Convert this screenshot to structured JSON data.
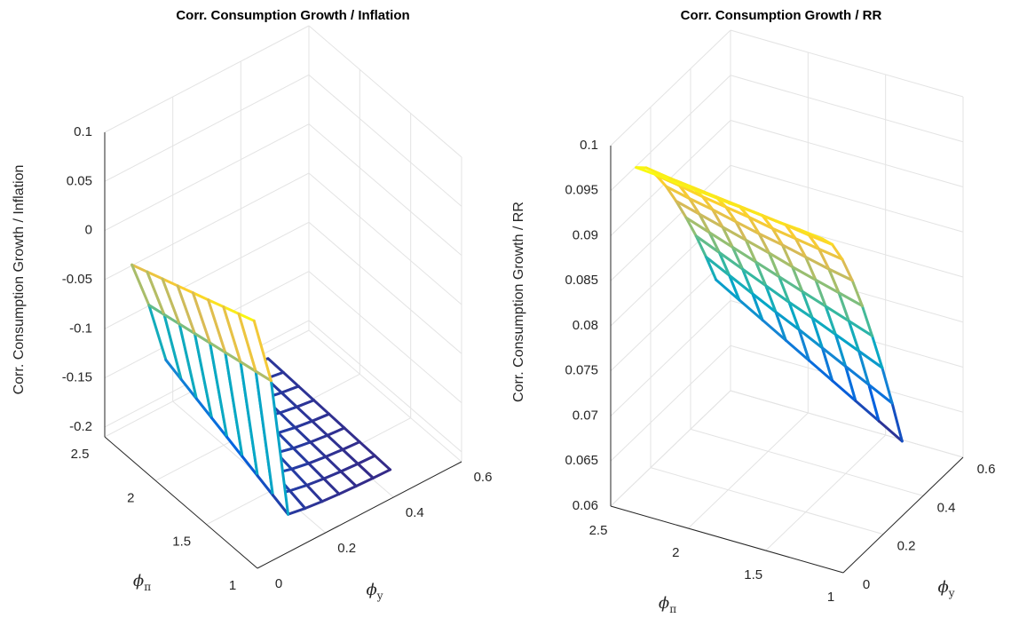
{
  "chart_data": [
    {
      "type": "mesh",
      "title": "Corr. Consumption Growth / Inflation",
      "xlabel": {
        "text": "ϕ",
        "subscript": "π"
      },
      "ylabel": {
        "text": "ϕ",
        "subscript": "y"
      },
      "zlabel": "Corr. Consumption Growth / Inflation",
      "xlim": [
        1,
        2.5
      ],
      "ylim": [
        0,
        0.6
      ],
      "zlim": [
        -0.21,
        0.1
      ],
      "xticks": [
        1,
        1.5,
        2,
        2.5
      ],
      "yticks": [
        0,
        0.2,
        0.4,
        0.6
      ],
      "zticks": [
        -0.2,
        -0.15,
        -0.1,
        -0.05,
        0,
        0.05,
        0.1
      ],
      "grid": true,
      "colormap": "parula",
      "x": [
        1.2,
        1.35,
        1.5,
        1.65,
        1.8,
        1.95,
        2.1,
        2.25,
        2.4
      ],
      "y": [
        0.05,
        0.1,
        0.15,
        0.2,
        0.25,
        0.3,
        0.35,
        0.4,
        0.45
      ],
      "z": [
        [
          0.015,
          -0.055,
          -0.2,
          -0.203,
          -0.205,
          -0.2065,
          -0.2075,
          -0.2083,
          -0.2088
        ],
        [
          0.0088,
          -0.0588,
          -0.1938,
          -0.1985,
          -0.2019,
          -0.2043,
          -0.206,
          -0.2072,
          -0.208
        ],
        [
          0.0025,
          -0.0625,
          -0.1875,
          -0.1941,
          -0.1988,
          -0.2021,
          -0.2044,
          -0.2061,
          -0.2073
        ],
        [
          -0.0038,
          -0.0663,
          -0.1813,
          -0.1897,
          -0.1957,
          -0.2,
          -0.2029,
          -0.205,
          -0.2065
        ],
        [
          -0.01,
          -0.07,
          -0.175,
          -0.1853,
          -0.1926,
          -0.1978,
          -0.2014,
          -0.2039,
          -0.2057
        ],
        [
          -0.0163,
          -0.0738,
          -0.1688,
          -0.1809,
          -0.1895,
          -0.1956,
          -0.1998,
          -0.2028,
          -0.205
        ],
        [
          -0.0225,
          -0.0775,
          -0.1625,
          -0.1765,
          -0.1864,
          -0.1934,
          -0.1983,
          -0.2017,
          -0.2042
        ],
        [
          -0.0288,
          -0.0813,
          -0.1563,
          -0.1721,
          -0.1833,
          -0.1912,
          -0.1967,
          -0.2007,
          -0.2034
        ],
        [
          -0.035,
          -0.085,
          -0.15,
          -0.1677,
          -0.1802,
          -0.189,
          -0.1952,
          -0.1996,
          -0.2027
        ]
      ]
    },
    {
      "type": "mesh",
      "title": "Corr. Consumption Growth / RR",
      "xlabel": {
        "text": "ϕ",
        "subscript": "π"
      },
      "ylabel": {
        "text": "ϕ",
        "subscript": "y"
      },
      "zlabel": "Corr. Consumption Growth / RR",
      "xlim": [
        1,
        2.5
      ],
      "ylim": [
        0,
        0.6
      ],
      "zlim": [
        0.06,
        0.1
      ],
      "xticks": [
        1,
        1.5,
        2,
        2.5
      ],
      "yticks": [
        0,
        0.2,
        0.4,
        0.6
      ],
      "zticks": [
        0.06,
        0.065,
        0.07,
        0.075,
        0.08,
        0.085,
        0.09,
        0.095,
        0.1
      ],
      "grid": true,
      "colormap": "parula",
      "x": [
        1.2,
        1.35,
        1.5,
        1.65,
        1.8,
        1.95,
        2.1,
        2.25,
        2.4
      ],
      "y": [
        0.05,
        0.1,
        0.15,
        0.2,
        0.25,
        0.3,
        0.35,
        0.4,
        0.45
      ],
      "z": [
        [
          0.095,
          0.0933,
          0.0906,
          0.0872,
          0.0833,
          0.0789,
          0.0743,
          0.0693,
          0.064
        ],
        [
          0.0953,
          0.0936,
          0.091,
          0.0877,
          0.084,
          0.0798,
          0.0754,
          0.0706,
          0.0655
        ],
        [
          0.0955,
          0.094,
          0.0914,
          0.0883,
          0.0847,
          0.0807,
          0.0765,
          0.0719,
          0.067
        ],
        [
          0.0958,
          0.0943,
          0.0918,
          0.0889,
          0.0854,
          0.0816,
          0.0776,
          0.0732,
          0.0685
        ],
        [
          0.096,
          0.0946,
          0.0923,
          0.0894,
          0.0862,
          0.0825,
          0.0786,
          0.0745,
          0.07
        ],
        [
          0.0963,
          0.0949,
          0.0927,
          0.09,
          0.0869,
          0.0834,
          0.0797,
          0.0757,
          0.0715
        ],
        [
          0.0965,
          0.0952,
          0.0931,
          0.0906,
          0.0876,
          0.0843,
          0.0808,
          0.077,
          0.073
        ],
        [
          0.0968,
          0.0955,
          0.0936,
          0.0911,
          0.0883,
          0.0852,
          0.0819,
          0.0783,
          0.0745
        ],
        [
          0.097,
          0.0959,
          0.094,
          0.0917,
          0.089,
          0.0861,
          0.083,
          0.0796,
          0.076
        ]
      ]
    }
  ]
}
